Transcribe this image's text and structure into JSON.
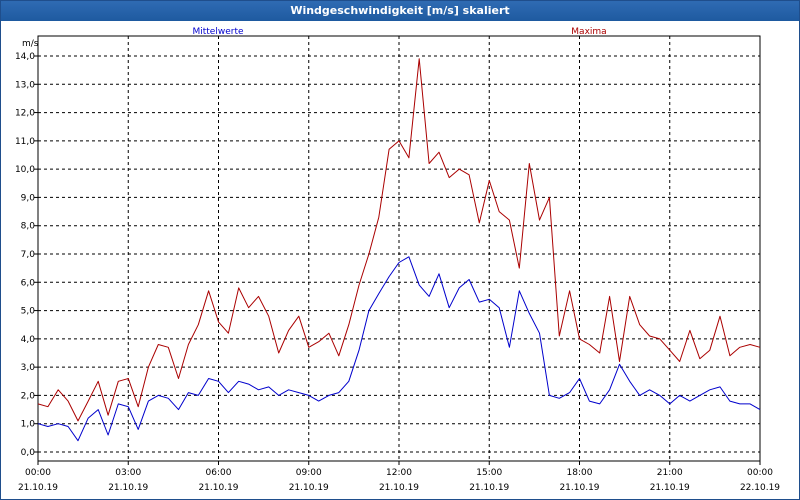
{
  "window": {
    "title": "Windgeschwindigkeit [m/s] skaliert"
  },
  "chart_data": {
    "type": "line",
    "title": "Windgeschwindigkeit [m/s] skaliert",
    "ylabel": "m/s",
    "xlabel": "",
    "ylim": [
      0,
      14
    ],
    "yticks": [
      "0,0",
      "1,0",
      "2,0",
      "3,0",
      "4,0",
      "5,0",
      "6,0",
      "7,0",
      "8,0",
      "9,0",
      "10,0",
      "11,0",
      "12,0",
      "13,0",
      "14,0"
    ],
    "xrange_hours": [
      0,
      24
    ],
    "xticks": [
      {
        "time": "00:00",
        "date": "21.10.19"
      },
      {
        "time": "03:00",
        "date": "21.10.19"
      },
      {
        "time": "06:00",
        "date": "21.10.19"
      },
      {
        "time": "09:00",
        "date": "21.10.19"
      },
      {
        "time": "12:00",
        "date": "21.10.19"
      },
      {
        "time": "15:00",
        "date": "21.10.19"
      },
      {
        "time": "18:00",
        "date": "21.10.19"
      },
      {
        "time": "21:00",
        "date": "21.10.19"
      },
      {
        "time": "00:00",
        "date": "22.10.19"
      }
    ],
    "grid": true,
    "series": [
      {
        "name": "Mittelwerte",
        "color": "#0000cc",
        "legend_position": "top-left",
        "x": [
          0,
          0.33,
          0.67,
          1,
          1.33,
          1.67,
          2,
          2.33,
          2.67,
          3,
          3.33,
          3.67,
          4,
          4.33,
          4.67,
          5,
          5.33,
          5.67,
          6,
          6.33,
          6.67,
          7,
          7.33,
          7.67,
          8,
          8.33,
          8.67,
          9,
          9.33,
          9.67,
          10,
          10.33,
          10.67,
          11,
          11.33,
          11.67,
          12,
          12.33,
          12.67,
          13,
          13.33,
          13.67,
          14,
          14.33,
          14.67,
          15,
          15.33,
          15.67,
          16,
          16.33,
          16.67,
          17,
          17.33,
          17.67,
          18,
          18.33,
          18.67,
          19,
          19.33,
          19.67,
          20,
          20.33,
          20.67,
          21,
          21.33,
          21.67,
          22,
          22.33,
          22.67,
          23,
          23.33,
          23.67,
          24
        ],
        "values": [
          1.0,
          0.9,
          1.0,
          0.9,
          0.4,
          1.2,
          1.5,
          0.6,
          1.7,
          1.6,
          0.8,
          1.8,
          2.0,
          1.9,
          1.5,
          2.1,
          2.0,
          2.6,
          2.5,
          2.1,
          2.5,
          2.4,
          2.2,
          2.3,
          2.0,
          2.2,
          2.1,
          2.0,
          1.8,
          2.0,
          2.1,
          2.5,
          3.6,
          5.0,
          5.6,
          6.2,
          6.7,
          6.9,
          5.9,
          5.5,
          6.3,
          5.1,
          5.8,
          6.1,
          5.3,
          5.4,
          5.1,
          3.7,
          5.7,
          4.9,
          4.2,
          2.0,
          1.9,
          2.1,
          2.6,
          1.8,
          1.7,
          2.2,
          3.1,
          2.5,
          2.0,
          2.2,
          2.0,
          1.7,
          2.0,
          1.8,
          2.0,
          2.2,
          2.3,
          1.8,
          1.7,
          1.7,
          1.5
        ]
      },
      {
        "name": "Maxima",
        "color": "#aa0000",
        "legend_position": "top-right",
        "x": [
          0,
          0.33,
          0.67,
          1,
          1.33,
          1.67,
          2,
          2.33,
          2.67,
          3,
          3.33,
          3.67,
          4,
          4.33,
          4.67,
          5,
          5.33,
          5.67,
          6,
          6.33,
          6.67,
          7,
          7.33,
          7.67,
          8,
          8.33,
          8.67,
          9,
          9.33,
          9.67,
          10,
          10.33,
          10.67,
          11,
          11.33,
          11.67,
          12,
          12.33,
          12.67,
          13,
          13.33,
          13.67,
          14,
          14.33,
          14.67,
          15,
          15.33,
          15.67,
          16,
          16.33,
          16.67,
          17,
          17.33,
          17.67,
          18,
          18.33,
          18.67,
          19,
          19.33,
          19.67,
          20,
          20.33,
          20.67,
          21,
          21.33,
          21.67,
          22,
          22.33,
          22.67,
          23,
          23.33,
          23.67,
          24
        ],
        "values": [
          1.7,
          1.6,
          2.2,
          1.8,
          1.1,
          1.8,
          2.5,
          1.3,
          2.5,
          2.6,
          1.6,
          3.0,
          3.8,
          3.7,
          2.6,
          3.8,
          4.5,
          5.7,
          4.6,
          4.2,
          5.8,
          5.1,
          5.5,
          4.8,
          3.5,
          4.3,
          4.8,
          3.7,
          3.9,
          4.2,
          3.4,
          4.5,
          5.9,
          7.0,
          8.3,
          10.7,
          11.0,
          10.4,
          13.9,
          10.2,
          10.6,
          9.7,
          10.0,
          9.8,
          8.1,
          9.6,
          8.5,
          8.2,
          6.5,
          10.2,
          8.2,
          9.0,
          4.1,
          5.7,
          4.0,
          3.8,
          3.5,
          5.5,
          3.2,
          5.5,
          4.5,
          4.1,
          4.0,
          3.6,
          3.2,
          4.3,
          3.3,
          3.6,
          4.8,
          3.4,
          3.7,
          3.8,
          3.7
        ]
      }
    ]
  }
}
